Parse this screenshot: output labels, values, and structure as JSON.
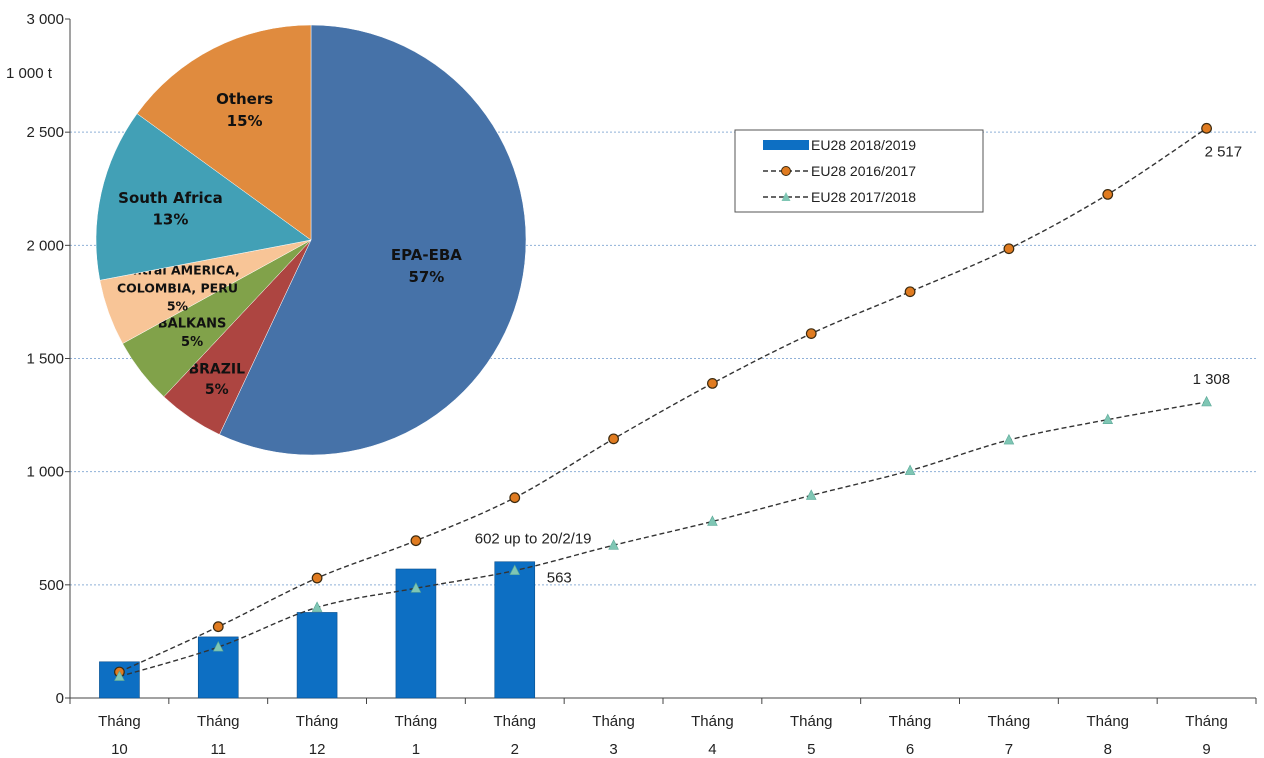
{
  "chart_data": {
    "type": "bar+line+pie",
    "ylabel": "1 000 t",
    "ylim": [
      0,
      3000
    ],
    "yticks": [
      {
        "value": 0,
        "label": "0"
      },
      {
        "value": 500,
        "label": "500"
      },
      {
        "value": 1000,
        "label": "1 000"
      },
      {
        "value": 1500,
        "label": "1 500"
      },
      {
        "value": 2000,
        "label": "2 000"
      },
      {
        "value": 2500,
        "label": "2 500"
      },
      {
        "value": 3000,
        "label": "3 000"
      }
    ],
    "categories": [
      [
        "Tháng",
        "10"
      ],
      [
        "Tháng",
        "11"
      ],
      [
        "Tháng",
        "12"
      ],
      [
        "Tháng",
        "1"
      ],
      [
        "Tháng",
        "2"
      ],
      [
        "Tháng",
        "3"
      ],
      [
        "Tháng",
        "4"
      ],
      [
        "Tháng",
        "5"
      ],
      [
        "Tháng",
        "6"
      ],
      [
        "Tháng",
        "7"
      ],
      [
        "Tháng",
        "8"
      ],
      [
        "Tháng",
        "9"
      ]
    ],
    "series": [
      {
        "name": "EU28  2018/2019",
        "type": "bar",
        "color": "#0d6fc3",
        "values": [
          160,
          270,
          378,
          570,
          602,
          null,
          null,
          null,
          null,
          null,
          null,
          null
        ]
      },
      {
        "name": "EU28  2016/2017",
        "type": "line",
        "marker": "circle",
        "color": "#e07b20",
        "values": [
          115,
          315,
          530,
          695,
          885,
          1145,
          1390,
          1610,
          1795,
          1985,
          2225,
          2517
        ]
      },
      {
        "name": "EU28  2017/2018",
        "type": "line",
        "marker": "triangle",
        "color": "#7fc6b4",
        "values": [
          95,
          225,
          400,
          485,
          563,
          675,
          780,
          895,
          1005,
          1140,
          1230,
          1308
        ]
      }
    ],
    "annotations": [
      {
        "text": "602 up to 20/2/19",
        "category_index": 4,
        "value": 602
      },
      {
        "text": "563",
        "category_index": 4,
        "value": 563
      },
      {
        "text": "2 517",
        "category_index": 11,
        "value": 2517
      },
      {
        "text": "1 308",
        "category_index": 11,
        "value": 1308
      }
    ],
    "legend_position": "top-right",
    "gridlines": true,
    "pie": {
      "slices": [
        {
          "label": "EPA-EBA",
          "pct_label": "57%",
          "value": 57,
          "color": "#4672a8"
        },
        {
          "label": "BRAZIL",
          "pct_label": "5%",
          "value": 5,
          "color": "#ad4541"
        },
        {
          "label": "BALKANS",
          "pct_label": "5%",
          "value": 5,
          "color": "#81a24a"
        },
        {
          "label": "Central AMERICA, COLOMBIA, PERU",
          "label_lines": [
            "Central AMERICA,",
            "COLOMBIA, PERU"
          ],
          "pct_label": "5%",
          "value": 5,
          "color": "#f8c597"
        },
        {
          "label": "South Africa",
          "pct_label": "13%",
          "value": 13,
          "color": "#42a0b6"
        },
        {
          "label": "Others",
          "pct_label": "15%",
          "value": 15,
          "color": "#e08b3e"
        }
      ]
    }
  }
}
